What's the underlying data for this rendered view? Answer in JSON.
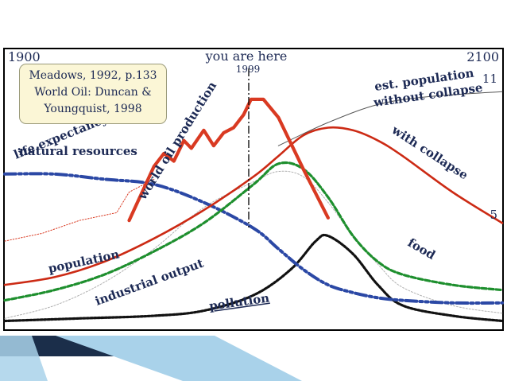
{
  "caption": {
    "line1": "Meadows, 1992, p.133",
    "line2": "World Oil: Duncan &",
    "line3": "Youngquist, 1998"
  },
  "colors": {
    "oil": "#d93a22",
    "population": "#cc2a14",
    "natural_resources": "#2b48a5",
    "food": "#1e8f2e",
    "pollution": "#111111",
    "frame": "#000000",
    "thin_curves": "#b0b0b0",
    "caption_bg": "#fbf6d6",
    "footer_dark": "#1b2e4a",
    "footer_light": "#a9d2ea"
  },
  "chart_data": {
    "type": "line",
    "x_range": [
      1900,
      2100
    ],
    "y_range": [
      0,
      1
    ],
    "y_axis_shown": false,
    "grid": false,
    "legend": "none (series labelled directly on curves)",
    "tick_labels": {
      "left": "1900",
      "right": "2100",
      "marker": "1999",
      "right_top_value": "11",
      "right_bottom_value": "5"
    },
    "annotations": {
      "you_are_here": "you are here",
      "est_population_line1": "est. population",
      "est_population_line2": "without collapse",
      "with_collapse": "with collapse"
    },
    "marker_year": 1999,
    "series": [
      {
        "name": "world oil production",
        "x": [
          1950,
          1960,
          1964,
          1968,
          1972,
          1975,
          1980,
          1984,
          1988,
          1992,
          1996,
          1999,
          2004,
          2010,
          2020,
          2030
        ],
        "y": [
          0.41,
          0.62,
          0.67,
          0.64,
          0.72,
          0.69,
          0.76,
          0.7,
          0.75,
          0.77,
          0.82,
          0.88,
          0.88,
          0.81,
          0.61,
          0.42
        ]
      },
      {
        "name": "population",
        "x": [
          1900,
          1920,
          1940,
          1960,
          1980,
          2000,
          2010,
          2020,
          2030,
          2040,
          2050,
          2060,
          2080,
          2100
        ],
        "y": [
          0.16,
          0.19,
          0.25,
          0.34,
          0.45,
          0.58,
          0.66,
          0.74,
          0.77,
          0.76,
          0.72,
          0.66,
          0.52,
          0.4
        ]
      },
      {
        "name": "natural resources",
        "x": [
          1900,
          1920,
          1940,
          1960,
          1980,
          2000,
          2010,
          2020,
          2030,
          2040,
          2050,
          2060,
          2080,
          2100
        ],
        "y": [
          0.59,
          0.59,
          0.57,
          0.55,
          0.48,
          0.38,
          0.3,
          0.22,
          0.16,
          0.13,
          0.11,
          0.1,
          0.09,
          0.09
        ]
      },
      {
        "name": "food",
        "x": [
          1900,
          1920,
          1940,
          1960,
          1980,
          2000,
          2010,
          2020,
          2030,
          2040,
          2050,
          2060,
          2080,
          2100
        ],
        "y": [
          0.1,
          0.14,
          0.2,
          0.29,
          0.4,
          0.55,
          0.63,
          0.61,
          0.5,
          0.35,
          0.25,
          0.2,
          0.16,
          0.14
        ]
      },
      {
        "name": "industrial output",
        "x": [
          1900,
          1920,
          1940,
          1960,
          1980,
          2000,
          2010,
          2020,
          2030,
          2040,
          2050,
          2060,
          2080,
          2100
        ],
        "y": [
          0.03,
          0.08,
          0.17,
          0.3,
          0.46,
          0.56,
          0.6,
          0.58,
          0.48,
          0.35,
          0.24,
          0.15,
          0.08,
          0.05
        ]
      },
      {
        "name": "pollution",
        "x": [
          1900,
          1930,
          1960,
          1980,
          2000,
          2015,
          2025,
          2030,
          2040,
          2050,
          2060,
          2080,
          2100
        ],
        "y": [
          0.02,
          0.03,
          0.04,
          0.06,
          0.12,
          0.22,
          0.33,
          0.35,
          0.28,
          0.16,
          0.08,
          0.04,
          0.02
        ]
      },
      {
        "name": "life expectancy",
        "x": [
          1900,
          1915,
          1930,
          1945,
          1950,
          1960
        ],
        "y": [
          0.33,
          0.36,
          0.41,
          0.44,
          0.52,
          0.57
        ]
      },
      {
        "name": "est. population without collapse",
        "x": [
          2010,
          2030,
          2050,
          2070,
          2100
        ],
        "y": [
          0.7,
          0.79,
          0.86,
          0.89,
          0.91
        ]
      }
    ]
  }
}
